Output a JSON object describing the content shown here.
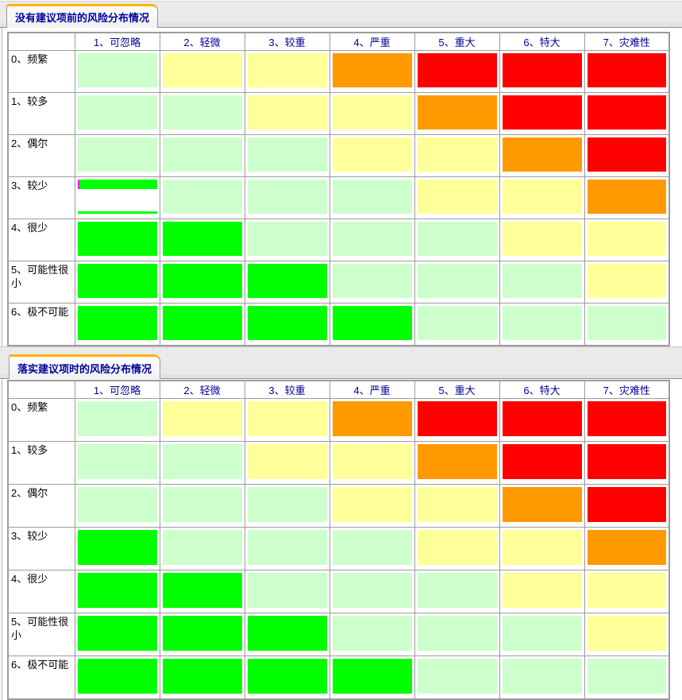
{
  "colors": {
    "green": "#00ff00",
    "light_green": "#ccffcc",
    "yellow": "#ffff99",
    "orange": "#ff9900",
    "red": "#ff0000",
    "partial_bar": "#00ff00",
    "partial_sliver": "#ff00ff",
    "grid_line": "#9c9c9c",
    "header_text": "#000099",
    "tab_text": "#00009b",
    "tab_accent": "#ffb400",
    "band_background": "#eaeaea"
  },
  "columns": [
    "1、可忽略",
    "2、轻微",
    "3、较重",
    "4、严重",
    "5、重大",
    "6、特大",
    "7、灾难性"
  ],
  "rows": [
    "0、频繁",
    "1、较多",
    "2、偶尔",
    "3、较少",
    "4、很少",
    "5、可能性很小",
    "6、极不可能"
  ],
  "tables": [
    {
      "title": "没有建议项前的风险分布情况",
      "matrix": [
        [
          "light_green",
          "yellow",
          "yellow",
          "orange",
          "red",
          "red",
          "red"
        ],
        [
          "light_green",
          "light_green",
          "yellow",
          "yellow",
          "orange",
          "red",
          "red"
        ],
        [
          "light_green",
          "light_green",
          "light_green",
          "yellow",
          "yellow",
          "orange",
          "red"
        ],
        [
          "partial",
          "light_green",
          "light_green",
          "light_green",
          "yellow",
          "yellow",
          "orange"
        ],
        [
          "green",
          "green",
          "light_green",
          "light_green",
          "light_green",
          "yellow",
          "yellow"
        ],
        [
          "green",
          "green",
          "green",
          "light_green",
          "light_green",
          "light_green",
          "yellow"
        ],
        [
          "green",
          "green",
          "green",
          "green",
          "light_green",
          "light_green",
          "light_green"
        ]
      ]
    },
    {
      "title": "落实建议项时的风险分布情况",
      "matrix": [
        [
          "light_green",
          "yellow",
          "yellow",
          "orange",
          "red",
          "red",
          "red"
        ],
        [
          "light_green",
          "light_green",
          "yellow",
          "yellow",
          "orange",
          "red",
          "red"
        ],
        [
          "light_green",
          "light_green",
          "light_green",
          "yellow",
          "yellow",
          "orange",
          "red"
        ],
        [
          "green",
          "light_green",
          "light_green",
          "light_green",
          "yellow",
          "yellow",
          "orange"
        ],
        [
          "green",
          "green",
          "light_green",
          "light_green",
          "light_green",
          "yellow",
          "yellow"
        ],
        [
          "green",
          "green",
          "green",
          "light_green",
          "light_green",
          "light_green",
          "yellow"
        ],
        [
          "green",
          "green",
          "green",
          "green",
          "light_green",
          "light_green",
          "light_green"
        ]
      ]
    }
  ]
}
